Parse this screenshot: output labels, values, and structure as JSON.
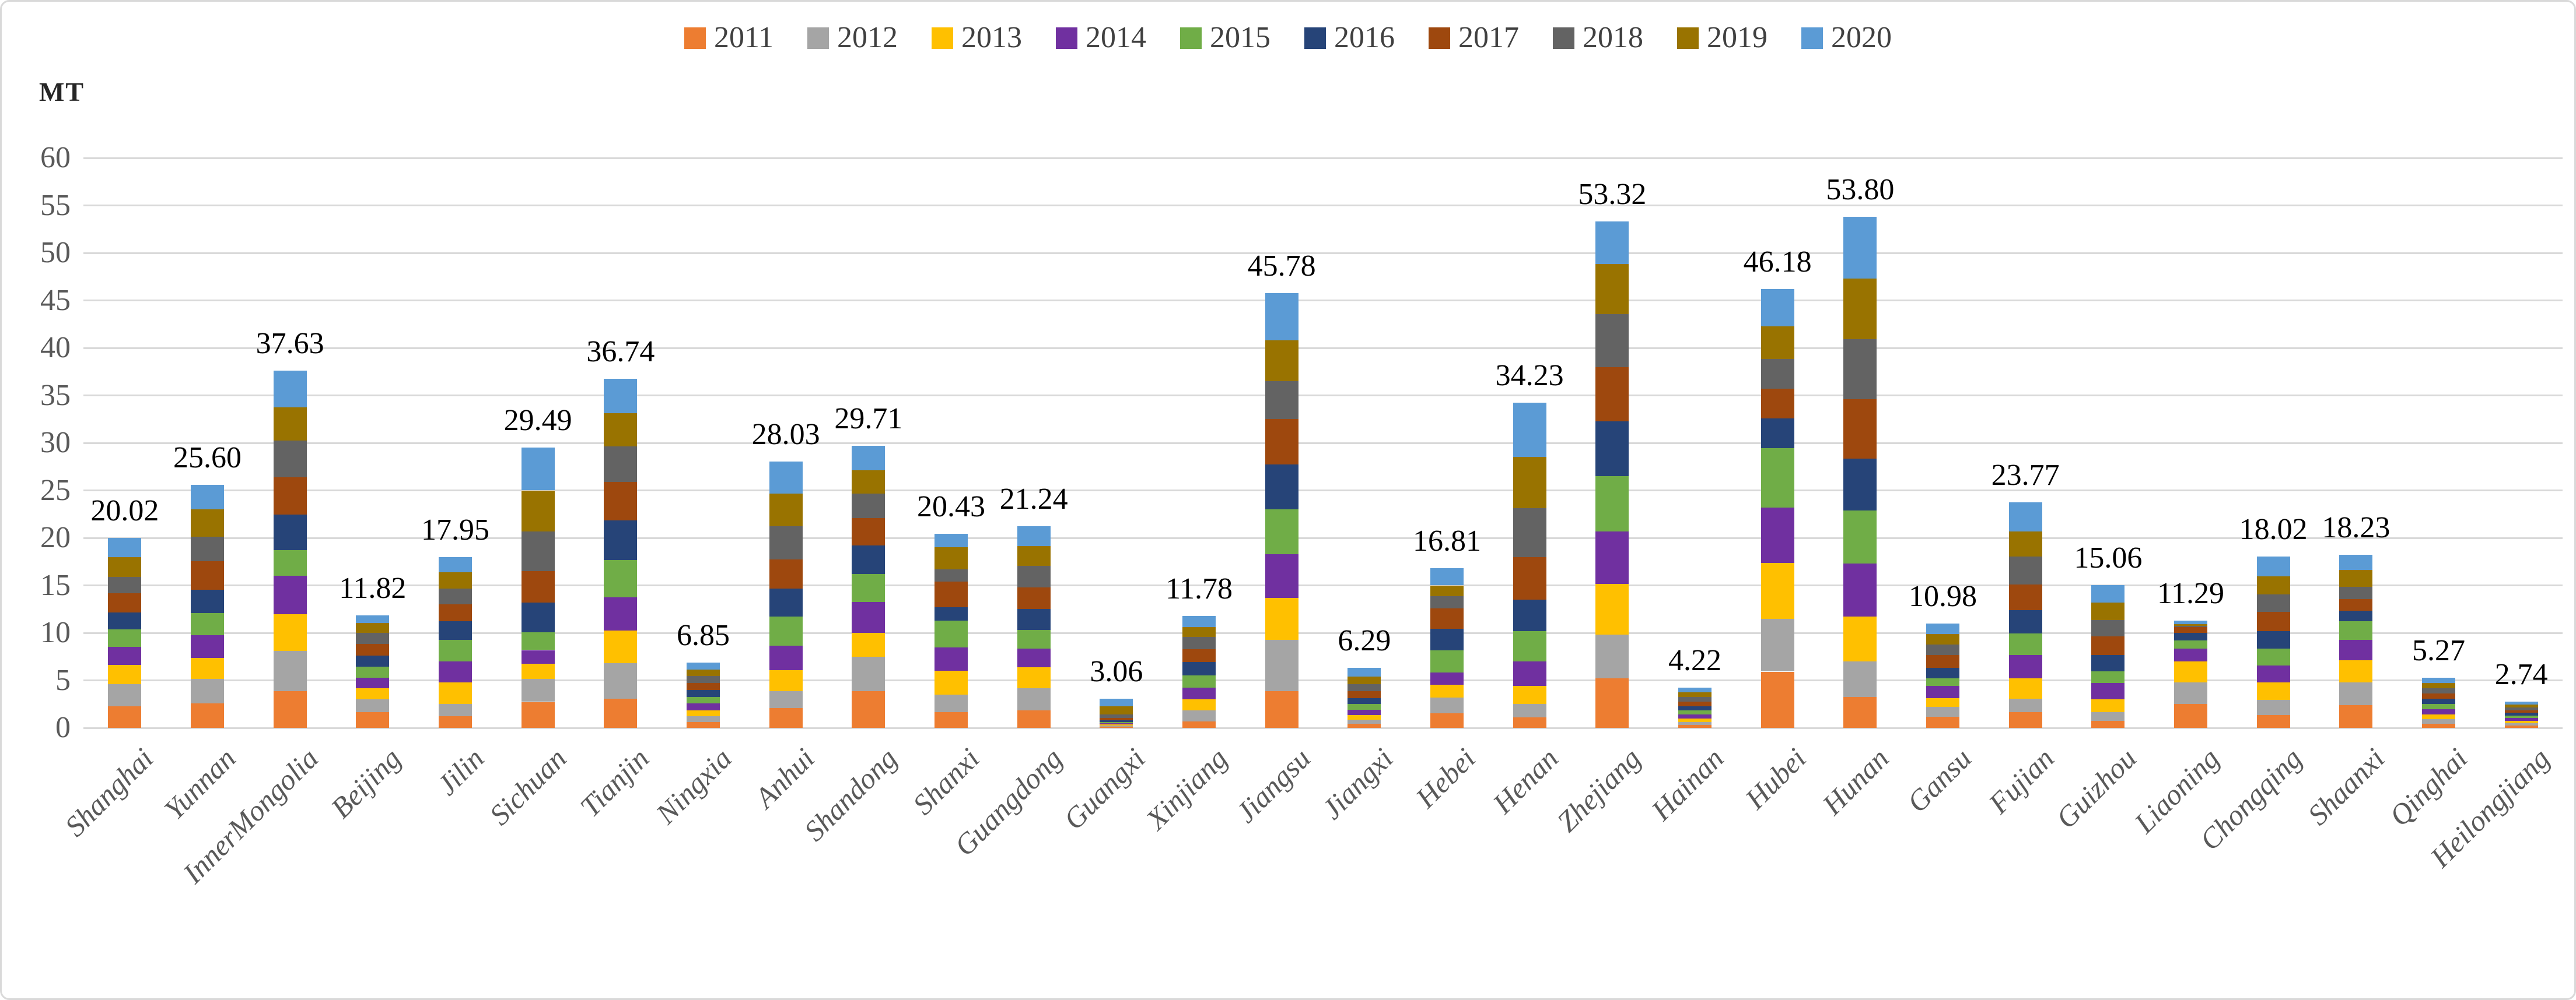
{
  "chart_data": {
    "type": "bar",
    "stacked": true,
    "title": "",
    "unit_label": "MT",
    "xlabel": "",
    "ylabel": "MT",
    "ylim": [
      0,
      60
    ],
    "y_ticks": [
      0,
      5,
      10,
      15,
      20,
      25,
      30,
      35,
      40,
      45,
      50,
      55,
      60
    ],
    "grid": true,
    "legend_position": "top",
    "categories": [
      "Shanghai",
      "Yunnan",
      "InnerMongolia",
      "Beijing",
      "Jilin",
      "Sichuan",
      "Tianjin",
      "Ningxia",
      "Anhui",
      "Shandong",
      "Shanxi",
      "Guangdong",
      "Guangxi",
      "Xinjiang",
      "Jiangsu",
      "Jiangxi",
      "Hebei",
      "Henan",
      "Zhejiang",
      "Hainan",
      "Hubei",
      "Hunan",
      "Gansu",
      "Fujian",
      "Guizhou",
      "Liaoning",
      "Chongqing",
      "Shaanxi",
      "Qinghai",
      "Heilongjiang"
    ],
    "totals": [
      "20.02",
      "25.60",
      "37.63",
      "11.82",
      "17.95",
      "29.49",
      "36.74",
      "6.85",
      "28.03",
      "29.71",
      "20.43",
      "21.24",
      "3.06",
      "11.78",
      "45.78",
      "6.29",
      "16.81",
      "34.23",
      "53.32",
      "4.22",
      "46.18",
      "53.80",
      "10.98",
      "23.77",
      "15.06",
      "11.29",
      "18.02",
      "18.23",
      "5.27",
      "2.74"
    ],
    "series": [
      {
        "name": "2011",
        "color": "#ED7D31",
        "values": [
          2.27,
          2.59,
          3.89,
          1.63,
          1.21,
          2.73,
          3.04,
          0.6,
          2.06,
          3.86,
          1.67,
          1.83,
          0.1,
          0.7,
          3.85,
          0.4,
          1.53,
          1.1,
          5.22,
          0.3,
          5.92,
          3.24,
          1.15,
          1.68,
          0.73,
          2.52,
          1.32,
          2.37,
          0.45,
          0.24
        ]
      },
      {
        "name": "2012",
        "color": "#A5A5A5",
        "values": [
          2.31,
          2.59,
          4.18,
          1.4,
          1.29,
          2.44,
          3.76,
          0.65,
          1.8,
          3.6,
          1.8,
          2.33,
          0.12,
          1.15,
          5.4,
          0.45,
          1.64,
          1.4,
          4.6,
          0.33,
          5.53,
          3.74,
          1.05,
          1.36,
          0.94,
          2.26,
          1.61,
          2.41,
          0.48,
          0.25
        ]
      },
      {
        "name": "2013",
        "color": "#FFC000",
        "values": [
          2.03,
          2.16,
          3.89,
          1.15,
          2.29,
          1.58,
          3.47,
          0.62,
          2.19,
          2.57,
          2.57,
          2.19,
          0.13,
          1.15,
          4.42,
          0.5,
          1.34,
          1.9,
          5.36,
          0.36,
          5.92,
          4.73,
          0.94,
          2.2,
          1.36,
          2.2,
          1.84,
          2.31,
          0.5,
          0.26
        ]
      },
      {
        "name": "2014",
        "color": "#7030A0",
        "values": [
          1.91,
          2.44,
          4.03,
          1.08,
          2.19,
          1.44,
          3.47,
          0.68,
          2.57,
          3.21,
          2.44,
          1.98,
          0.14,
          1.25,
          4.6,
          0.55,
          1.32,
          2.6,
          5.5,
          0.4,
          5.8,
          5.57,
          1.26,
          2.41,
          1.68,
          1.36,
          1.78,
          2.2,
          0.52,
          0.27
        ]
      },
      {
        "name": "2015",
        "color": "#70AD47",
        "values": [
          1.82,
          2.3,
          2.74,
          1.21,
          2.29,
          1.87,
          3.9,
          0.7,
          3.08,
          2.96,
          2.83,
          1.98,
          0.15,
          1.25,
          4.71,
          0.6,
          2.31,
          3.2,
          5.83,
          0.42,
          6.3,
          5.61,
          0.84,
          2.31,
          1.26,
          0.88,
          1.82,
          1.95,
          0.54,
          0.28
        ]
      },
      {
        "name": "2016",
        "color": "#264478",
        "values": [
          1.82,
          2.44,
          3.75,
          1.15,
          1.98,
          3.16,
          4.19,
          0.72,
          2.96,
          3.03,
          1.41,
          2.19,
          0.18,
          1.46,
          4.78,
          0.65,
          2.31,
          3.3,
          5.76,
          0.45,
          3.09,
          5.46,
          1.05,
          2.41,
          1.68,
          0.8,
          1.84,
          1.09,
          0.55,
          0.28
        ]
      },
      {
        "name": "2017",
        "color": "#9E480E",
        "values": [
          1.99,
          3.02,
          3.89,
          1.21,
          1.77,
          3.3,
          4.05,
          0.75,
          3.08,
          2.88,
          2.7,
          2.29,
          0.22,
          1.35,
          4.78,
          0.7,
          2.1,
          4.5,
          5.68,
          0.48,
          3.13,
          6.26,
          1.36,
          2.73,
          1.99,
          0.59,
          1.99,
          1.22,
          0.56,
          0.29
        ]
      },
      {
        "name": "2018",
        "color": "#636363",
        "values": [
          1.74,
          2.59,
          3.89,
          1.19,
          1.63,
          4.17,
          3.76,
          0.73,
          3.47,
          2.57,
          1.29,
          2.29,
          0.4,
          1.25,
          3.96,
          0.75,
          1.3,
          5.1,
          5.58,
          0.5,
          3.13,
          6.34,
          1.15,
          2.94,
          1.68,
          0.15,
          1.84,
          1.3,
          0.57,
          0.29
        ]
      },
      {
        "name": "2019",
        "color": "#997300",
        "values": [
          2.1,
          2.87,
          3.46,
          1.0,
          1.71,
          4.31,
          3.47,
          0.71,
          3.47,
          2.44,
          2.31,
          2.06,
          0.8,
          1.04,
          4.32,
          0.82,
          1.15,
          5.4,
          5.29,
          0.52,
          3.44,
          6.37,
          1.05,
          2.66,
          1.89,
          0.16,
          1.89,
          1.78,
          0.55,
          0.29
        ]
      },
      {
        "name": "2020",
        "color": "#5B9BD5",
        "values": [
          2.03,
          2.6,
          3.91,
          0.8,
          1.59,
          4.49,
          3.63,
          0.69,
          3.35,
          2.59,
          1.41,
          2.1,
          0.82,
          1.18,
          4.96,
          0.87,
          1.81,
          5.73,
          4.5,
          0.46,
          3.92,
          6.48,
          1.13,
          3.07,
          1.85,
          0.37,
          2.09,
          1.6,
          0.55,
          0.29
        ]
      }
    ]
  }
}
